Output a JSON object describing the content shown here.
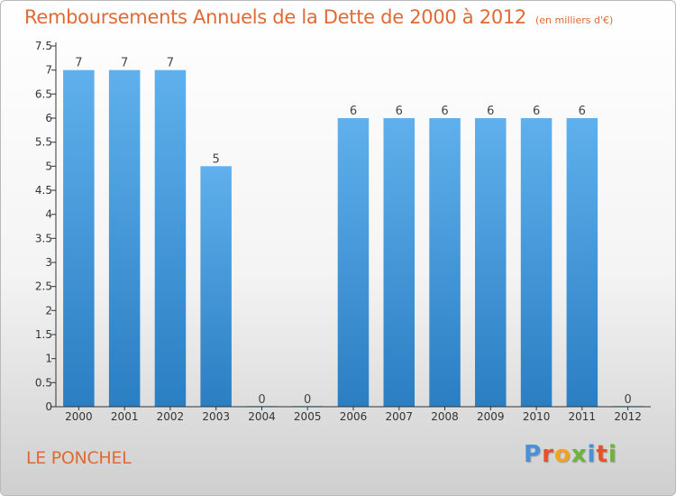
{
  "header": {
    "title": "Remboursements Annuels de la Dette de 2000 à 2012",
    "unit_note": "(en milliers d'€)"
  },
  "footer": {
    "city": "LE PONCHEL",
    "logo": [
      "P",
      "r",
      "o",
      "x",
      "i",
      "t",
      "i"
    ],
    "logo_colors": [
      "#4a90d9",
      "#e8512a",
      "#f2a31b",
      "#6cb33f",
      "#4a90d9",
      "#e8512a",
      "#6cb33f"
    ]
  },
  "colors": {
    "bar_light": "#5fb0ec",
    "bar_dark": "#2a7ec2",
    "axis": "#333333",
    "title": "#e06a34"
  },
  "chart_data": {
    "type": "bar",
    "categories": [
      "2000",
      "2001",
      "2002",
      "2003",
      "2004",
      "2005",
      "2006",
      "2007",
      "2008",
      "2009",
      "2010",
      "2011",
      "2012"
    ],
    "values": [
      7,
      7,
      7,
      5,
      0,
      0,
      6,
      6,
      6,
      6,
      6,
      6,
      0
    ],
    "data_labels": [
      "7",
      "7",
      "7",
      "5",
      "0",
      "0",
      "6",
      "6",
      "6",
      "6",
      "6",
      "6",
      "0"
    ],
    "ylim": [
      0,
      7.5
    ],
    "yticks": [
      0,
      0.5,
      1,
      1.5,
      2,
      2.5,
      3,
      3.5,
      4,
      4.5,
      5,
      5.5,
      6,
      6.5,
      7,
      7.5
    ],
    "ytick_labels": [
      "0",
      "0.5",
      "1",
      "1.5",
      "2",
      "2.5",
      "3",
      "3.5",
      "4",
      "4.5",
      "5",
      "5.5",
      "6",
      "6.5",
      "7",
      "7.5"
    ],
    "grid": false,
    "legend": "none"
  }
}
